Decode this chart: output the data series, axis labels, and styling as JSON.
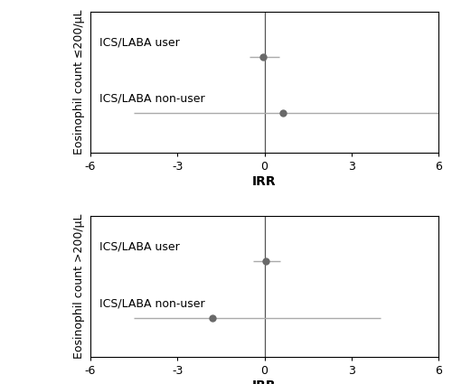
{
  "panel1": {
    "ylabel": "Eosinophil count ≤200/µL",
    "xlabel": "IRR",
    "row_labels": [
      "ICS/LABA user",
      "ICS/LABA non-user"
    ],
    "points": [
      -0.05,
      0.65
    ],
    "ci_low": [
      -0.5,
      -4.5
    ],
    "ci_high": [
      0.5,
      6.0
    ],
    "xlim": [
      -6,
      6
    ],
    "xticks": [
      -6,
      -3,
      0,
      3,
      6
    ]
  },
  "panel2": {
    "ylabel": "Eosinophil count >200/µL",
    "xlabel": "IRR",
    "row_labels": [
      "ICS/LABA user",
      "ICS/LABA non-user"
    ],
    "points": [
      0.05,
      -1.8
    ],
    "ci_low": [
      -0.4,
      -4.5
    ],
    "ci_high": [
      0.55,
      4.0
    ],
    "xlim": [
      -6,
      6
    ],
    "xticks": [
      -6,
      -3,
      0,
      3,
      6
    ]
  },
  "point_color": "#696969",
  "line_color": "#aaaaaa",
  "vline_color": "#555555",
  "marker_size": 6,
  "line_width": 1.0,
  "tick_fontsize": 9,
  "label_fontsize": 9,
  "ylabel_fontsize": 9,
  "xlabel_fontsize": 10,
  "bg_color": "#ffffff"
}
